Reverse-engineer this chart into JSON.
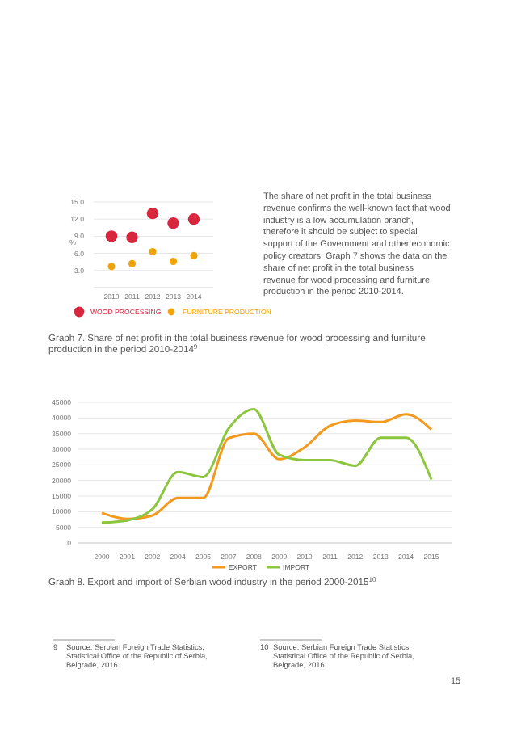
{
  "chart_data": [
    {
      "type": "scatter",
      "title": "Graph 7. Share of net profit in the total business revenue for wood processing and furniture production in the period 2010-2014$^{9}$",
      "ylabel": "%",
      "categories": [
        "2010",
        "2011",
        "2012",
        "2013",
        "2014"
      ],
      "series": [
        {
          "name": "WOOD PROCESSING",
          "color": "#d7263d",
          "values": [
            9.0,
            8.8,
            13.0,
            11.3,
            12.0
          ]
        },
        {
          "name": "FURNITURE PRODUCTION",
          "color": "#f0a30a",
          "values": [
            3.7,
            4.2,
            6.3,
            4.6,
            5.6
          ]
        }
      ],
      "ylim": [
        0,
        15
      ],
      "yticks": [
        {
          "value": 3,
          "label": "3.0"
        },
        {
          "value": 6,
          "label": "6.0"
        },
        {
          "value": 9,
          "label": "9.0"
        },
        {
          "value": 12,
          "label": "12.0"
        },
        {
          "value": 15,
          "label": "15.0"
        }
      ],
      "grid": "y",
      "legend": "bottom",
      "marker": "circle",
      "annotations": [
        "The share of net profit in the total business revenue confirms the well-known fact that wood industry is a low accumulation branch, therefore it should be subject to special support of the Government and other economic policy creators. Graph 7 shows the data on the share of net profit in the total business revenue for wood processing and furniture production in the period 2010-2014.",
        "9 Source: Serbian Foreign Trade Statistics, Statistical Office of the Republic of Serbia, Belgrade, 2016"
      ]
    },
    {
      "type": "line",
      "title": "Graph 8. Export and import of Serbian wood industry in the period 2000-2015$^{10}$",
      "categories": [
        "2000",
        "2001",
        "2002",
        "2004",
        "2005",
        "2007",
        "2008",
        "2009",
        "2010",
        "2011",
        "2012",
        "2013",
        "2014",
        "2015"
      ],
      "series": [
        {
          "name": "EXPORT",
          "color": "#f39a1e",
          "values": [
            9600,
            7700,
            8800,
            14400,
            14400,
            33500,
            35000,
            26800,
            30600,
            37500,
            39200,
            38700,
            41200,
            36300
          ]
        },
        {
          "name": "IMPORT",
          "color": "#8cc63f",
          "values": [
            6500,
            7200,
            10800,
            22700,
            21100,
            36600,
            42800,
            28200,
            26500,
            26500,
            24700,
            33700,
            33700,
            20300
          ]
        }
      ],
      "ylim": [
        0,
        45000
      ],
      "yticks": [
        0,
        5000,
        10000,
        15000,
        20000,
        25000,
        30000,
        35000,
        40000,
        45000
      ],
      "grid": "y",
      "legend": "bottom",
      "marker": "none",
      "line_style": "solid",
      "annotations": [
        "10 Source: Serbian Foreign Trade Statistics, Statistical Office of the Republic of Serbia, Belgrade, 2016",
        "15"
      ]
    }
  ]
}
